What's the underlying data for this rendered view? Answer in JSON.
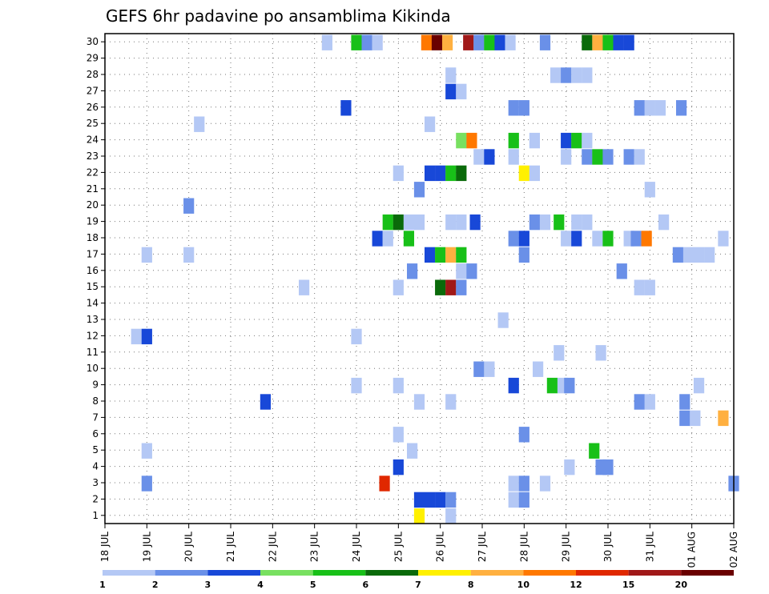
{
  "chart_data": {
    "type": "heatmap",
    "title": "GEFS 6hr padavine po ansamblima Kikinda",
    "ylim": [
      0,
      30
    ],
    "y_ticks": [
      "1",
      "2",
      "3",
      "4",
      "5",
      "6",
      "7",
      "8",
      "9",
      "10",
      "11",
      "12",
      "13",
      "14",
      "15",
      "16",
      "17",
      "18",
      "19",
      "20",
      "21",
      "22",
      "23",
      "24",
      "25",
      "26",
      "27",
      "28",
      "29",
      "30"
    ],
    "x_ticks": [
      "18 JUL",
      "19 JUL",
      "20 JUL",
      "21 JUL",
      "22 JUL",
      "23 JUL",
      "24 JUL",
      "25 JUL",
      "26 JUL",
      "27 JUL",
      "28 JUL",
      "29 JUL",
      "30 JUL",
      "31 JUL",
      "01 AUG",
      "02 AUG"
    ],
    "grid": true,
    "legend": {
      "placement": "bottom",
      "labels": [
        "1",
        "2",
        "3",
        "4",
        "5",
        "6",
        "7",
        "8",
        "10",
        "12",
        "15",
        "20"
      ],
      "colors": [
        "#b4c8f5",
        "#6a90e8",
        "#1848d8",
        "#78e060",
        "#18c018",
        "#0a6a0a",
        "#fff000",
        "#ffb040",
        "#ff7800",
        "#e02800",
        "#a01818",
        "#6a0000"
      ]
    },
    "cells": [
      {
        "member": 30,
        "day": 23.3,
        "level": 1
      },
      {
        "member": 30,
        "day": 24.0,
        "level": 5
      },
      {
        "member": 30,
        "day": 24.25,
        "level": 2
      },
      {
        "member": 30,
        "day": 24.5,
        "level": 1
      },
      {
        "member": 30,
        "day": 25.67,
        "level": 9
      },
      {
        "member": 30,
        "day": 25.92,
        "level": 12
      },
      {
        "member": 30,
        "day": 26.17,
        "level": 8
      },
      {
        "member": 30,
        "day": 26.67,
        "level": 11
      },
      {
        "member": 30,
        "day": 26.92,
        "level": 2
      },
      {
        "member": 30,
        "day": 27.17,
        "level": 5
      },
      {
        "member": 30,
        "day": 27.42,
        "level": 3
      },
      {
        "member": 30,
        "day": 27.67,
        "level": 1
      },
      {
        "member": 30,
        "day": 28.5,
        "level": 2
      },
      {
        "member": 30,
        "day": 29.5,
        "level": 6
      },
      {
        "member": 30,
        "day": 29.75,
        "level": 8
      },
      {
        "member": 30,
        "day": 30.0,
        "level": 5
      },
      {
        "member": 30,
        "day": 30.25,
        "level": 3
      },
      {
        "member": 30,
        "day": 30.5,
        "level": 3
      },
      {
        "member": 28,
        "day": 26.25,
        "level": 1
      },
      {
        "member": 28,
        "day": 28.75,
        "level": 1
      },
      {
        "member": 28,
        "day": 29.0,
        "level": 2
      },
      {
        "member": 28,
        "day": 29.25,
        "level": 1
      },
      {
        "member": 28,
        "day": 29.5,
        "level": 1
      },
      {
        "member": 27,
        "day": 26.25,
        "level": 3
      },
      {
        "member": 27,
        "day": 26.5,
        "level": 1
      },
      {
        "member": 26,
        "day": 23.75,
        "level": 3
      },
      {
        "member": 26,
        "day": 27.75,
        "level": 2
      },
      {
        "member": 26,
        "day": 28.0,
        "level": 2
      },
      {
        "member": 26,
        "day": 30.75,
        "level": 2
      },
      {
        "member": 26,
        "day": 31.0,
        "level": 1
      },
      {
        "member": 26,
        "day": 31.25,
        "level": 1
      },
      {
        "member": 26,
        "day": 31.75,
        "level": 2
      },
      {
        "member": 25,
        "day": 20.25,
        "level": 1
      },
      {
        "member": 25,
        "day": 25.75,
        "level": 1
      },
      {
        "member": 24,
        "day": 26.5,
        "level": 4
      },
      {
        "member": 24,
        "day": 26.75,
        "level": 9
      },
      {
        "member": 24,
        "day": 27.75,
        "level": 5
      },
      {
        "member": 24,
        "day": 28.25,
        "level": 1
      },
      {
        "member": 24,
        "day": 29.0,
        "level": 3
      },
      {
        "member": 24,
        "day": 29.25,
        "level": 5
      },
      {
        "member": 24,
        "day": 29.5,
        "level": 1
      },
      {
        "member": 23,
        "day": 26.92,
        "level": 1
      },
      {
        "member": 23,
        "day": 27.17,
        "level": 3
      },
      {
        "member": 23,
        "day": 27.75,
        "level": 1
      },
      {
        "member": 23,
        "day": 29.0,
        "level": 1
      },
      {
        "member": 23,
        "day": 29.5,
        "level": 2
      },
      {
        "member": 23,
        "day": 29.75,
        "level": 5
      },
      {
        "member": 23,
        "day": 30.0,
        "level": 2
      },
      {
        "member": 23,
        "day": 30.5,
        "level": 2
      },
      {
        "member": 23,
        "day": 30.75,
        "level": 1
      },
      {
        "member": 22,
        "day": 25.0,
        "level": 1
      },
      {
        "member": 22,
        "day": 25.75,
        "level": 3
      },
      {
        "member": 22,
        "day": 26.0,
        "level": 3
      },
      {
        "member": 22,
        "day": 26.25,
        "level": 5
      },
      {
        "member": 22,
        "day": 26.5,
        "level": 6
      },
      {
        "member": 22,
        "day": 28.0,
        "level": 7
      },
      {
        "member": 22,
        "day": 28.25,
        "level": 1
      },
      {
        "member": 21,
        "day": 25.5,
        "level": 2
      },
      {
        "member": 21,
        "day": 31.0,
        "level": 1
      },
      {
        "member": 20,
        "day": 20.0,
        "level": 2
      },
      {
        "member": 19,
        "day": 24.75,
        "level": 5
      },
      {
        "member": 19,
        "day": 25.0,
        "level": 6
      },
      {
        "member": 19,
        "day": 25.25,
        "level": 1
      },
      {
        "member": 19,
        "day": 25.5,
        "level": 1
      },
      {
        "member": 19,
        "day": 26.25,
        "level": 1
      },
      {
        "member": 19,
        "day": 26.5,
        "level": 1
      },
      {
        "member": 19,
        "day": 26.83,
        "level": 3
      },
      {
        "member": 19,
        "day": 28.25,
        "level": 2
      },
      {
        "member": 19,
        "day": 28.5,
        "level": 1
      },
      {
        "member": 19,
        "day": 28.83,
        "level": 5
      },
      {
        "member": 19,
        "day": 29.25,
        "level": 1
      },
      {
        "member": 19,
        "day": 29.5,
        "level": 1
      },
      {
        "member": 19,
        "day": 31.33,
        "level": 1
      },
      {
        "member": 18,
        "day": 24.5,
        "level": 3
      },
      {
        "member": 18,
        "day": 24.75,
        "level": 1
      },
      {
        "member": 18,
        "day": 25.25,
        "level": 5
      },
      {
        "member": 18,
        "day": 27.75,
        "level": 2
      },
      {
        "member": 18,
        "day": 28.0,
        "level": 3
      },
      {
        "member": 18,
        "day": 29.0,
        "level": 1
      },
      {
        "member": 18,
        "day": 29.25,
        "level": 3
      },
      {
        "member": 18,
        "day": 29.75,
        "level": 1
      },
      {
        "member": 18,
        "day": 30.0,
        "level": 5
      },
      {
        "member": 18,
        "day": 30.5,
        "level": 1
      },
      {
        "member": 18,
        "day": 30.67,
        "level": 2
      },
      {
        "member": 18,
        "day": 30.92,
        "level": 9
      },
      {
        "member": 18,
        "day": 32.75,
        "level": 1
      },
      {
        "member": 17,
        "day": 19.0,
        "level": 1
      },
      {
        "member": 17,
        "day": 20.0,
        "level": 1
      },
      {
        "member": 17,
        "day": 25.75,
        "level": 3
      },
      {
        "member": 17,
        "day": 26.0,
        "level": 5
      },
      {
        "member": 17,
        "day": 26.25,
        "level": 8
      },
      {
        "member": 17,
        "day": 26.5,
        "level": 5
      },
      {
        "member": 17,
        "day": 28.0,
        "level": 2
      },
      {
        "member": 17,
        "day": 31.67,
        "level": 2
      },
      {
        "member": 17,
        "day": 31.92,
        "level": 1
      },
      {
        "member": 17,
        "day": 32.17,
        "level": 1
      },
      {
        "member": 17,
        "day": 32.42,
        "level": 1
      },
      {
        "member": 16,
        "day": 25.33,
        "level": 2
      },
      {
        "member": 16,
        "day": 26.5,
        "level": 1
      },
      {
        "member": 16,
        "day": 26.75,
        "level": 2
      },
      {
        "member": 16,
        "day": 30.33,
        "level": 2
      },
      {
        "member": 15,
        "day": 22.75,
        "level": 1
      },
      {
        "member": 15,
        "day": 25.0,
        "level": 1
      },
      {
        "member": 15,
        "day": 26.0,
        "level": 6
      },
      {
        "member": 15,
        "day": 26.25,
        "level": 11
      },
      {
        "member": 15,
        "day": 26.5,
        "level": 2
      },
      {
        "member": 15,
        "day": 30.75,
        "level": 1
      },
      {
        "member": 15,
        "day": 31.0,
        "level": 1
      },
      {
        "member": 13,
        "day": 27.5,
        "level": 1
      },
      {
        "member": 12,
        "day": 18.75,
        "level": 1
      },
      {
        "member": 12,
        "day": 19.0,
        "level": 3
      },
      {
        "member": 12,
        "day": 24.0,
        "level": 1
      },
      {
        "member": 11,
        "day": 28.83,
        "level": 1
      },
      {
        "member": 11,
        "day": 29.83,
        "level": 1
      },
      {
        "member": 10,
        "day": 26.92,
        "level": 2
      },
      {
        "member": 10,
        "day": 27.17,
        "level": 1
      },
      {
        "member": 10,
        "day": 28.33,
        "level": 1
      },
      {
        "member": 9,
        "day": 24.0,
        "level": 1
      },
      {
        "member": 9,
        "day": 25.0,
        "level": 1
      },
      {
        "member": 9,
        "day": 27.75,
        "level": 3
      },
      {
        "member": 9,
        "day": 28.67,
        "level": 5
      },
      {
        "member": 9,
        "day": 28.92,
        "level": 1
      },
      {
        "member": 9,
        "day": 29.08,
        "level": 2
      },
      {
        "member": 9,
        "day": 32.17,
        "level": 1
      },
      {
        "member": 8,
        "day": 21.83,
        "level": 3
      },
      {
        "member": 8,
        "day": 25.5,
        "level": 1
      },
      {
        "member": 8,
        "day": 26.25,
        "level": 1
      },
      {
        "member": 8,
        "day": 30.75,
        "level": 2
      },
      {
        "member": 8,
        "day": 31.0,
        "level": 1
      },
      {
        "member": 8,
        "day": 31.83,
        "level": 2
      },
      {
        "member": 7,
        "day": 31.83,
        "level": 2
      },
      {
        "member": 7,
        "day": 32.08,
        "level": 1
      },
      {
        "member": 7,
        "day": 32.75,
        "level": 8
      },
      {
        "member": 6,
        "day": 25.0,
        "level": 1
      },
      {
        "member": 6,
        "day": 28.0,
        "level": 2
      },
      {
        "member": 5,
        "day": 19.0,
        "level": 1
      },
      {
        "member": 5,
        "day": 25.33,
        "level": 1
      },
      {
        "member": 5,
        "day": 29.67,
        "level": 5
      },
      {
        "member": 4,
        "day": 25.0,
        "level": 3
      },
      {
        "member": 4,
        "day": 29.08,
        "level": 1
      },
      {
        "member": 4,
        "day": 29.83,
        "level": 2
      },
      {
        "member": 4,
        "day": 30.0,
        "level": 2
      },
      {
        "member": 3,
        "day": 19.0,
        "level": 2
      },
      {
        "member": 3,
        "day": 24.67,
        "level": 10
      },
      {
        "member": 3,
        "day": 27.75,
        "level": 1
      },
      {
        "member": 3,
        "day": 28.0,
        "level": 2
      },
      {
        "member": 3,
        "day": 28.5,
        "level": 1
      },
      {
        "member": 3,
        "day": 33.0,
        "level": 2
      },
      {
        "member": 2,
        "day": 25.5,
        "level": 3
      },
      {
        "member": 2,
        "day": 25.75,
        "level": 3
      },
      {
        "member": 2,
        "day": 26.0,
        "level": 3
      },
      {
        "member": 2,
        "day": 26.25,
        "level": 2
      },
      {
        "member": 2,
        "day": 27.75,
        "level": 1
      },
      {
        "member": 2,
        "day": 28.0,
        "level": 2
      },
      {
        "member": 1,
        "day": 25.5,
        "level": 7
      },
      {
        "member": 1,
        "day": 26.25,
        "level": 1
      }
    ]
  }
}
